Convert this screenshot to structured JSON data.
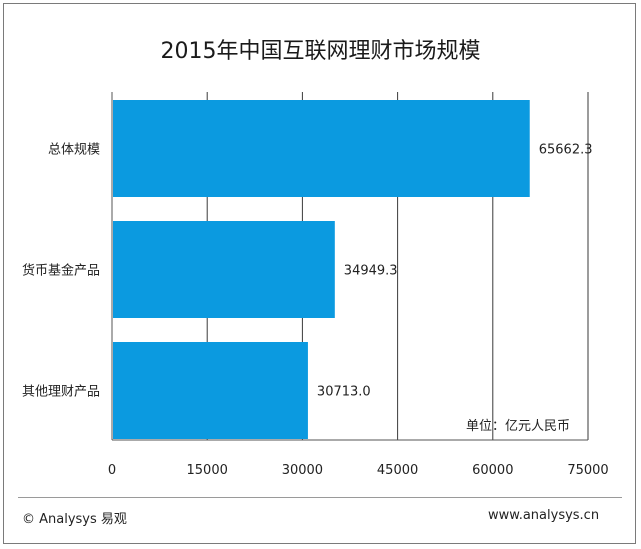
{
  "chart_data": {
    "type": "bar",
    "orientation": "horizontal",
    "title": "2015年中国互联网理财市场规模",
    "categories": [
      "总体规模",
      "货币基金产品",
      "其他理财产品"
    ],
    "values": [
      65662.3,
      34949.3,
      30713.0
    ],
    "value_labels": [
      "65662.3",
      "34949.3",
      "30713.0"
    ],
    "xlim": [
      0,
      75000
    ],
    "x_ticks": [
      "0",
      "15000",
      "30000",
      "45000",
      "60000",
      "75000"
    ],
    "grid": true,
    "bar_color": "#0b9ae0",
    "unit_label": "单位：亿元人民币"
  },
  "footer": {
    "copyright": "© Analysys 易观",
    "website": "www.analysys.cn"
  }
}
